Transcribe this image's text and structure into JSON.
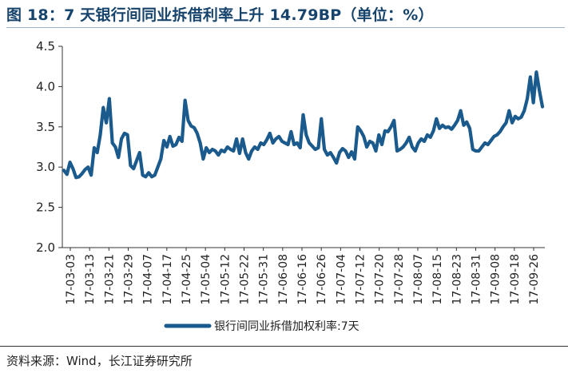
{
  "header": {
    "figure_label": "图 18：",
    "title_text": "7 天银行间同业拆借利率上升 14.79BP（单位：%）"
  },
  "footer": {
    "source": "资料来源：Wind，长江证券研究所"
  },
  "colors": {
    "series": "#1a5a8c",
    "title": "#17446c",
    "axis": "#333333"
  },
  "chart_data": {
    "type": "line",
    "title": "7 天银行间同业拆借利率上升 14.79BP（单位：%）",
    "xlabel": "",
    "ylabel": "",
    "ylim": [
      2.0,
      4.5
    ],
    "yticks": [
      2.0,
      2.5,
      3.0,
      3.5,
      4.0,
      4.5
    ],
    "ytick_labels": [
      "2.0",
      "2.5",
      "3.0",
      "3.5",
      "4.0",
      "4.5"
    ],
    "xtick_labels": [
      "17-03-03",
      "17-03-13",
      "17-03-21",
      "17-03-29",
      "17-04-07",
      "17-04-17",
      "17-04-25",
      "17-05-04",
      "17-05-12",
      "17-05-22",
      "17-05-31",
      "17-06-08",
      "17-06-16",
      "17-06-26",
      "17-07-04",
      "17-07-12",
      "17-07-20",
      "17-07-28",
      "17-08-07",
      "17-08-15",
      "17-08-23",
      "17-08-31",
      "17-09-08",
      "17-09-18",
      "17-09-26"
    ],
    "grid": false,
    "legend_position": "bottom-center",
    "series": [
      {
        "name": "银行间同业拆借加权利率:7天",
        "values": [
          2.96,
          2.91,
          3.06,
          2.98,
          2.87,
          2.88,
          2.92,
          2.97,
          3.0,
          2.9,
          3.24,
          3.18,
          3.4,
          3.74,
          3.55,
          3.85,
          3.3,
          3.25,
          3.12,
          3.35,
          3.42,
          3.4,
          3.02,
          2.98,
          3.08,
          3.18,
          2.9,
          2.88,
          2.93,
          2.88,
          2.9,
          3.0,
          3.1,
          3.33,
          3.25,
          3.38,
          3.26,
          3.28,
          3.37,
          3.32,
          3.83,
          3.58,
          3.51,
          3.49,
          3.42,
          3.3,
          3.1,
          3.24,
          3.18,
          3.22,
          3.2,
          3.15,
          3.21,
          3.19,
          3.25,
          3.22,
          3.2,
          3.35,
          3.17,
          3.35,
          3.18,
          3.1,
          3.2,
          3.25,
          3.22,
          3.3,
          3.28,
          3.34,
          3.42,
          3.3,
          3.35,
          3.38,
          3.32,
          3.3,
          3.28,
          3.44,
          3.28,
          3.3,
          3.24,
          3.65,
          3.4,
          3.3,
          3.26,
          3.22,
          3.24,
          3.6,
          3.22,
          3.15,
          3.18,
          3.12,
          3.05,
          3.18,
          3.23,
          3.2,
          3.12,
          3.19,
          3.1,
          3.5,
          3.45,
          3.38,
          3.25,
          3.32,
          3.3,
          3.2,
          3.4,
          3.28,
          3.45,
          3.44,
          3.5,
          3.58,
          3.2,
          3.22,
          3.25,
          3.3,
          3.37,
          3.25,
          3.2,
          3.3,
          3.35,
          3.32,
          3.4,
          3.37,
          3.45,
          3.6,
          3.48,
          3.52,
          3.49,
          3.5,
          3.47,
          3.52,
          3.58,
          3.7,
          3.52,
          3.56,
          3.48,
          3.22,
          3.2,
          3.2,
          3.25,
          3.3,
          3.28,
          3.33,
          3.38,
          3.4,
          3.44,
          3.5,
          3.55,
          3.7,
          3.55,
          3.63,
          3.6,
          3.62,
          3.7,
          3.85,
          4.12,
          3.8,
          4.18,
          3.95,
          3.75
        ]
      }
    ]
  }
}
